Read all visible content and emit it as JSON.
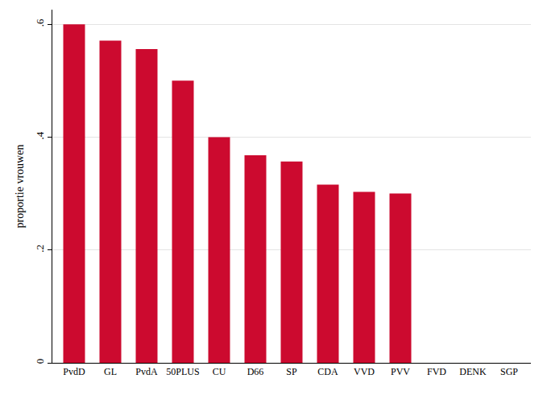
{
  "chart_data": {
    "type": "bar",
    "y_label": "proportie vrouwen",
    "categories": [
      "PvdD",
      "GL",
      "PvdA",
      "50PLUS",
      "CU",
      "D66",
      "SP",
      "CDA",
      "VVD",
      "PVV",
      "FVD",
      "DENK",
      "SGP"
    ],
    "values": [
      0.6,
      0.571,
      0.556,
      0.5,
      0.4,
      0.368,
      0.357,
      0.316,
      0.303,
      0.3,
      0,
      0,
      0
    ],
    "color": "#cc0a2f",
    "ylim": [
      0,
      0.626
    ],
    "yticks": [
      0,
      {
        "value": 0.2,
        "label": ".2"
      },
      {
        "value": 0.4,
        "label": ".4"
      },
      {
        "value": 0.6,
        "label": ".6"
      }
    ],
    "grid": true
  }
}
